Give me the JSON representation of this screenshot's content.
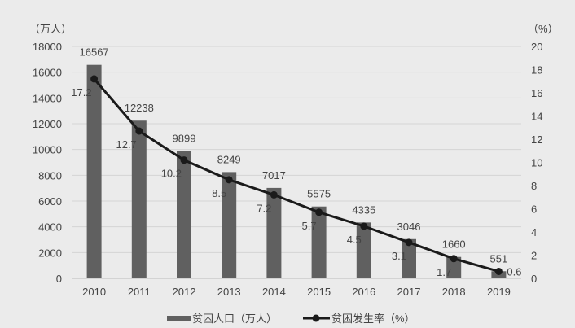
{
  "chart_data": {
    "type": "bar+line",
    "categories": [
      "2010",
      "2011",
      "2012",
      "2013",
      "2014",
      "2015",
      "2016",
      "2017",
      "2018",
      "2019"
    ],
    "series": [
      {
        "name": "贫困人口（万人）",
        "type": "bar",
        "axis": "left",
        "values": [
          16567,
          12238,
          9899,
          8249,
          7017,
          5575,
          4335,
          3046,
          1660,
          551
        ]
      },
      {
        "name": "贫困发生率（%）",
        "type": "line",
        "axis": "right",
        "values": [
          17.2,
          12.7,
          10.2,
          8.5,
          7.2,
          5.7,
          4.5,
          3.1,
          1.7,
          0.6
        ]
      }
    ],
    "y_left": {
      "label": "（万人）",
      "range": [
        0,
        18000
      ],
      "step": 2000
    },
    "y_right": {
      "label": "（%）",
      "range": [
        0,
        20
      ],
      "step": 2
    },
    "grid": true,
    "legend": "bottom",
    "colors": {
      "bar": "#606060",
      "line": "#1a1a1a",
      "background": "#ebebeb",
      "grid": "#d4d4d4"
    }
  }
}
